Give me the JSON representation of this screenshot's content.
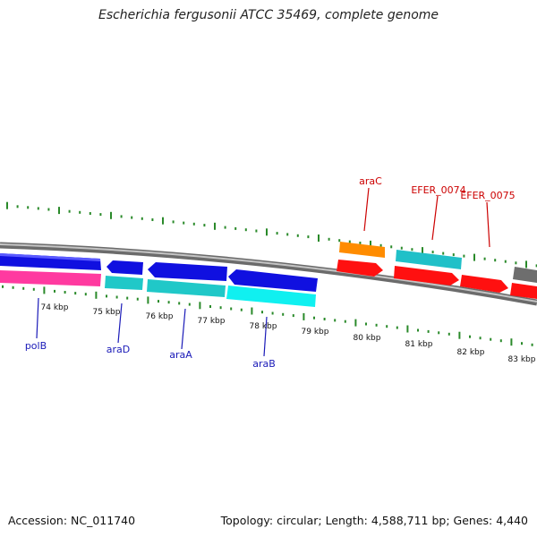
{
  "title": "Escherichia fergusonii ATCC 35469, complete genome",
  "footer": {
    "accession": "Accession: NC_011740",
    "info": "Topology: circular; Length: 4,588,711 bp; Genes: 4,440"
  },
  "scale_labels": [
    "74 kbp",
    "75 kbp",
    "76 kbp",
    "77 kbp",
    "78 kbp",
    "79 kbp",
    "80 kbp",
    "81 kbp",
    "82 kbp",
    "83 kbp"
  ],
  "genes": [
    {
      "id": "polB",
      "name": "polB",
      "color": "#1010e0",
      "name_color": "#1a1ab8"
    },
    {
      "id": "araD",
      "name": "araD",
      "color": "#1010e0",
      "name_color": "#1a1ab8"
    },
    {
      "id": "araA",
      "name": "araA",
      "color": "#1010e0",
      "name_color": "#1a1ab8"
    },
    {
      "id": "araB",
      "name": "araB",
      "color": "#1010e0",
      "name_color": "#1a1ab8"
    },
    {
      "id": "araC",
      "name": "araC",
      "color": "#ff8c00",
      "name_color": "#cc0000"
    },
    {
      "id": "EFER_0074",
      "name": "EFER_0074",
      "color": "#20c0c8",
      "name_color": "#cc0000"
    },
    {
      "id": "EFER_0075",
      "name": "EFER_0075",
      "color": "#ff1010",
      "name_color": "#cc0000"
    },
    {
      "id": "unlabeled",
      "name": "",
      "color": "#777777",
      "name_color": ""
    }
  ],
  "colors": {
    "backbone": "#8a8a8a",
    "tick": "#2a8a2a",
    "forward_cds": "#ff1010",
    "reverse_cds": "#1010e0",
    "rna_a": "#ff3aa0",
    "rna_b": "#20c8c8",
    "rna_c": "#10f0f0",
    "orange": "#ff8c00",
    "grey_gene": "#6e6e6e"
  }
}
